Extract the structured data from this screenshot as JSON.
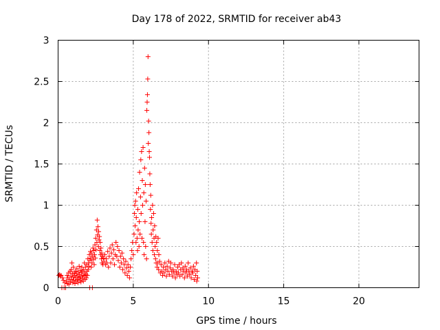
{
  "chart_data": {
    "type": "scatter",
    "title": "Day 178 of 2022, SRMTID for receiver ab43",
    "xlabel": "GPS time / hours",
    "ylabel": "SRMTID / TECUs",
    "xlim": [
      0,
      24
    ],
    "ylim": [
      0,
      3
    ],
    "xticks": [
      0,
      5,
      10,
      15,
      20
    ],
    "xtick_labels": [
      "0",
      "5",
      "10",
      "15",
      "20"
    ],
    "yticks": [
      0,
      0.5,
      1,
      1.5,
      2,
      2.5,
      3
    ],
    "ytick_labels": [
      "0",
      "0.5",
      "1",
      "1.5",
      "2",
      "2.5",
      "3"
    ],
    "grid": true,
    "marker": "+",
    "color": "#ff0000",
    "series": [
      {
        "name": "SRMTID",
        "points": [
          [
            0.05,
            0.15
          ],
          [
            0.1,
            0.16
          ],
          [
            0.15,
            0.14
          ],
          [
            0.2,
            0.15
          ],
          [
            0.25,
            0.0
          ],
          [
            0.3,
            0.12
          ],
          [
            0.35,
            0.09
          ],
          [
            0.4,
            0.0
          ],
          [
            0.45,
            0.06
          ],
          [
            0.5,
            0.0
          ],
          [
            0.55,
            0.08
          ],
          [
            0.6,
            0.15
          ],
          [
            0.62,
            0.05
          ],
          [
            0.65,
            0.12
          ],
          [
            0.7,
            0.18
          ],
          [
            0.72,
            0.04
          ],
          [
            0.75,
            0.1
          ],
          [
            0.8,
            0.2
          ],
          [
            0.82,
            0.07
          ],
          [
            0.85,
            0.14
          ],
          [
            0.88,
            0.22
          ],
          [
            0.9,
            0.1
          ],
          [
            0.92,
            0.3
          ],
          [
            0.95,
            0.17
          ],
          [
            0.98,
            0.06
          ],
          [
            1.0,
            0.13
          ],
          [
            1.02,
            0.25
          ],
          [
            1.05,
            0.09
          ],
          [
            1.08,
            0.18
          ],
          [
            1.1,
            0.15
          ],
          [
            1.12,
            0.05
          ],
          [
            1.15,
            0.2
          ],
          [
            1.18,
            0.12
          ],
          [
            1.2,
            0.08
          ],
          [
            1.22,
            0.17
          ],
          [
            1.25,
            0.23
          ],
          [
            1.28,
            0.1
          ],
          [
            1.3,
            0.14
          ],
          [
            1.32,
            0.06
          ],
          [
            1.35,
            0.19
          ],
          [
            1.38,
            0.12
          ],
          [
            1.4,
            0.26
          ],
          [
            1.42,
            0.16
          ],
          [
            1.45,
            0.09
          ],
          [
            1.48,
            0.21
          ],
          [
            1.5,
            0.13
          ],
          [
            1.52,
            0.07
          ],
          [
            1.55,
            0.18
          ],
          [
            1.58,
            0.25
          ],
          [
            1.6,
            0.11
          ],
          [
            1.62,
            0.2
          ],
          [
            1.65,
            0.15
          ],
          [
            1.68,
            0.08
          ],
          [
            1.7,
            0.22
          ],
          [
            1.72,
            0.14
          ],
          [
            1.75,
            0.3
          ],
          [
            1.78,
            0.18
          ],
          [
            1.8,
            0.1
          ],
          [
            1.82,
            0.25
          ],
          [
            1.85,
            0.16
          ],
          [
            1.88,
            0.12
          ],
          [
            1.9,
            0.28
          ],
          [
            1.92,
            0.2
          ],
          [
            1.95,
            0.15
          ],
          [
            1.98,
            0.35
          ],
          [
            2.0,
            0.22
          ],
          [
            2.02,
            0.3
          ],
          [
            2.05,
            0.26
          ],
          [
            2.08,
            0.4
          ],
          [
            2.1,
            0.0
          ],
          [
            2.12,
            0.33
          ],
          [
            2.15,
            0.44
          ],
          [
            2.18,
            0.36
          ],
          [
            2.2,
            0.25
          ],
          [
            2.22,
            0.42
          ],
          [
            2.25,
            0.3
          ],
          [
            2.28,
            0.0
          ],
          [
            2.3,
            0.38
          ],
          [
            2.32,
            0.48
          ],
          [
            2.35,
            0.34
          ],
          [
            2.38,
            0.45
          ],
          [
            2.4,
            0.28
          ],
          [
            2.42,
            0.4
          ],
          [
            2.45,
            0.52
          ],
          [
            2.48,
            0.36
          ],
          [
            2.5,
            0.6
          ],
          [
            2.52,
            0.46
          ],
          [
            2.55,
            0.7
          ],
          [
            2.58,
            0.55
          ],
          [
            2.6,
            0.82
          ],
          [
            2.62,
            0.64
          ],
          [
            2.65,
            0.74
          ],
          [
            2.68,
            0.5
          ],
          [
            2.7,
            0.68
          ],
          [
            2.72,
            0.58
          ],
          [
            2.75,
            0.62
          ],
          [
            2.78,
            0.45
          ],
          [
            2.8,
            0.55
          ],
          [
            2.82,
            0.4
          ],
          [
            2.85,
            0.48
          ],
          [
            2.88,
            0.35
          ],
          [
            2.9,
            0.42
          ],
          [
            2.92,
            0.3
          ],
          [
            2.95,
            0.38
          ],
          [
            2.98,
            0.28
          ],
          [
            3.0,
            0.36
          ],
          [
            3.05,
            0.32
          ],
          [
            3.1,
            0.4
          ],
          [
            3.15,
            0.28
          ],
          [
            3.2,
            0.35
          ],
          [
            3.25,
            0.3
          ],
          [
            3.3,
            0.44
          ],
          [
            3.35,
            0.25
          ],
          [
            3.4,
            0.38
          ],
          [
            3.45,
            0.48
          ],
          [
            3.5,
            0.3
          ],
          [
            3.55,
            0.42
          ],
          [
            3.6,
            0.52
          ],
          [
            3.65,
            0.35
          ],
          [
            3.7,
            0.46
          ],
          [
            3.75,
            0.28
          ],
          [
            3.8,
            0.4
          ],
          [
            3.85,
            0.55
          ],
          [
            3.9,
            0.38
          ],
          [
            3.95,
            0.5
          ],
          [
            4.0,
            0.33
          ],
          [
            4.05,
            0.45
          ],
          [
            4.1,
            0.25
          ],
          [
            4.15,
            0.38
          ],
          [
            4.2,
            0.3
          ],
          [
            4.25,
            0.42
          ],
          [
            4.3,
            0.22
          ],
          [
            4.35,
            0.35
          ],
          [
            4.4,
            0.28
          ],
          [
            4.45,
            0.18
          ],
          [
            4.5,
            0.32
          ],
          [
            4.55,
            0.24
          ],
          [
            4.6,
            0.15
          ],
          [
            4.65,
            0.28
          ],
          [
            4.7,
            0.2
          ],
          [
            4.75,
            0.12
          ],
          [
            4.8,
            0.25
          ],
          [
            4.85,
            0.35
          ],
          [
            4.9,
            0.45
          ],
          [
            4.95,
            0.55
          ],
          [
            5.0,
            0.4
          ],
          [
            5.05,
            0.65
          ],
          [
            5.08,
            0.9
          ],
          [
            5.1,
            1.0
          ],
          [
            5.12,
            0.75
          ],
          [
            5.15,
            1.05
          ],
          [
            5.18,
            0.55
          ],
          [
            5.2,
            0.85
          ],
          [
            5.22,
            1.15
          ],
          [
            5.25,
            0.6
          ],
          [
            5.28,
            0.45
          ],
          [
            5.3,
            0.95
          ],
          [
            5.32,
            0.7
          ],
          [
            5.35,
            1.2
          ],
          [
            5.38,
            0.5
          ],
          [
            5.4,
            0.8
          ],
          [
            5.42,
            1.4
          ],
          [
            5.45,
            0.65
          ],
          [
            5.48,
            1.1
          ],
          [
            5.5,
            1.55
          ],
          [
            5.52,
            0.9
          ],
          [
            5.55,
            1.65
          ],
          [
            5.58,
            0.6
          ],
          [
            5.6,
            1.3
          ],
          [
            5.62,
            1.0
          ],
          [
            5.65,
            1.7
          ],
          [
            5.68,
            0.55
          ],
          [
            5.7,
            1.15
          ],
          [
            5.72,
            0.4
          ],
          [
            5.75,
            1.45
          ],
          [
            5.78,
            0.8
          ],
          [
            5.8,
            1.25
          ],
          [
            5.82,
            0.5
          ],
          [
            5.85,
            1.05
          ],
          [
            5.88,
            0.35
          ],
          [
            5.9,
            2.15
          ],
          [
            5.92,
            2.25
          ],
          [
            5.94,
            2.34
          ],
          [
            5.96,
            2.53
          ],
          [
            5.98,
            2.8
          ],
          [
            6.0,
            1.75
          ],
          [
            6.02,
            2.02
          ],
          [
            6.04,
            1.88
          ],
          [
            6.06,
            1.65
          ],
          [
            6.08,
            1.58
          ],
          [
            6.1,
            1.38
          ],
          [
            6.12,
            1.25
          ],
          [
            6.14,
            0.95
          ],
          [
            6.16,
            1.12
          ],
          [
            6.18,
            0.78
          ],
          [
            6.2,
            0.65
          ],
          [
            6.22,
            0.85
          ],
          [
            6.25,
            0.55
          ],
          [
            6.28,
            1.0
          ],
          [
            6.3,
            0.45
          ],
          [
            6.32,
            0.7
          ],
          [
            6.35,
            0.9
          ],
          [
            6.38,
            0.6
          ],
          [
            6.4,
            0.4
          ],
          [
            6.42,
            0.75
          ],
          [
            6.45,
            0.5
          ],
          [
            6.48,
            0.35
          ],
          [
            6.5,
            0.62
          ],
          [
            6.52,
            0.3
          ],
          [
            6.55,
            0.55
          ],
          [
            6.58,
            0.25
          ],
          [
            6.6,
            0.45
          ],
          [
            6.62,
            0.3
          ],
          [
            6.65,
            0.6
          ],
          [
            6.68,
            0.22
          ],
          [
            6.7,
            0.4
          ],
          [
            6.75,
            0.32
          ],
          [
            6.8,
            0.18
          ],
          [
            6.85,
            0.28
          ],
          [
            6.9,
            0.2
          ],
          [
            6.95,
            0.15
          ],
          [
            7.0,
            0.25
          ],
          [
            7.05,
            0.18
          ],
          [
            7.1,
            0.3
          ],
          [
            7.15,
            0.22
          ],
          [
            7.2,
            0.14
          ],
          [
            7.25,
            0.26
          ],
          [
            7.3,
            0.2
          ],
          [
            7.35,
            0.32
          ],
          [
            7.4,
            0.16
          ],
          [
            7.45,
            0.24
          ],
          [
            7.5,
            0.3
          ],
          [
            7.55,
            0.2
          ],
          [
            7.6,
            0.14
          ],
          [
            7.65,
            0.22
          ],
          [
            7.7,
            0.18
          ],
          [
            7.75,
            0.28
          ],
          [
            7.8,
            0.12
          ],
          [
            7.85,
            0.2
          ],
          [
            7.9,
            0.16
          ],
          [
            7.95,
            0.25
          ],
          [
            8.0,
            0.18
          ],
          [
            8.05,
            0.28
          ],
          [
            8.1,
            0.14
          ],
          [
            8.15,
            0.22
          ],
          [
            8.2,
            0.3
          ],
          [
            8.25,
            0.16
          ],
          [
            8.3,
            0.24
          ],
          [
            8.35,
            0.2
          ],
          [
            8.4,
            0.12
          ],
          [
            8.45,
            0.26
          ],
          [
            8.5,
            0.18
          ],
          [
            8.55,
            0.22
          ],
          [
            8.6,
            0.14
          ],
          [
            8.65,
            0.3
          ],
          [
            8.7,
            0.2
          ],
          [
            8.75,
            0.16
          ],
          [
            8.8,
            0.24
          ],
          [
            8.85,
            0.12
          ],
          [
            8.9,
            0.2
          ],
          [
            8.95,
            0.18
          ],
          [
            9.0,
            0.26
          ],
          [
            9.05,
            0.1
          ],
          [
            9.1,
            0.22
          ],
          [
            9.15,
            0.15
          ],
          [
            9.2,
            0.3
          ],
          [
            9.22,
            0.08
          ],
          [
            9.25,
            0.2
          ],
          [
            9.28,
            0.12
          ]
        ]
      }
    ]
  }
}
